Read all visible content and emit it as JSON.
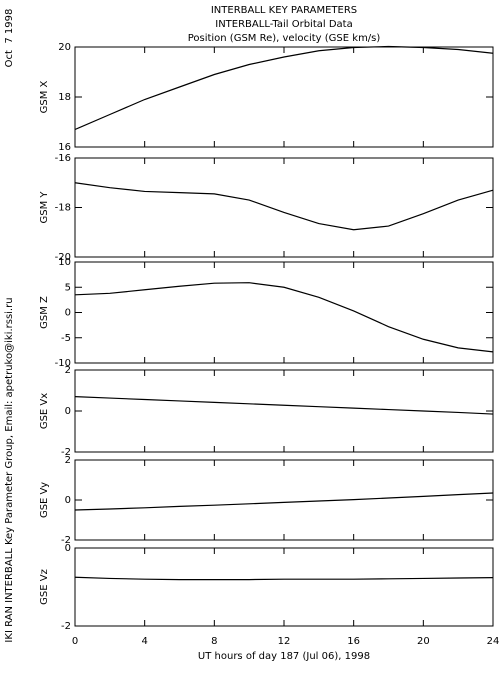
{
  "title": [
    "INTERBALL KEY PARAMETERS",
    "INTERBALL-Tail Orbital Data",
    "Position (GSM Re), velocity (GSE km/s)"
  ],
  "date": "Oct  7 1998",
  "credit": "IKI RAN INTERBALL Key Parameter Group, Email: apetruko@iki.rssi.ru",
  "chart_data": [
    {
      "type": "line",
      "ylabel": "GSM X",
      "color": "#000000",
      "xlim": [
        0,
        24
      ],
      "x": [
        0,
        2,
        4,
        6,
        8,
        10,
        12,
        14,
        16,
        18,
        20,
        22,
        24
      ],
      "values": [
        16.7,
        17.3,
        17.9,
        18.4,
        18.9,
        19.3,
        19.6,
        19.85,
        19.98,
        20.02,
        19.98,
        19.9,
        19.75
      ],
      "ylim": [
        16,
        20
      ],
      "yticks": [
        16,
        18,
        20
      ]
    },
    {
      "type": "line",
      "ylabel": "GSM Y",
      "color": "#000000",
      "xlim": [
        0,
        24
      ],
      "x": [
        0,
        2,
        4,
        6,
        8,
        10,
        12,
        14,
        16,
        18,
        20,
        22,
        24
      ],
      "values": [
        -17.0,
        -17.2,
        -17.35,
        -17.4,
        -17.45,
        -17.7,
        -18.2,
        -18.65,
        -18.9,
        -18.75,
        -18.25,
        -17.7,
        -17.3
      ],
      "ylim": [
        -20,
        -16
      ],
      "yticks": [
        -20,
        -18,
        -16
      ]
    },
    {
      "type": "line",
      "ylabel": "GSM Z",
      "color": "#000000",
      "xlim": [
        0,
        24
      ],
      "x": [
        0,
        2,
        4,
        6,
        8,
        10,
        12,
        14,
        16,
        18,
        20,
        22,
        24
      ],
      "values": [
        3.5,
        3.8,
        4.5,
        5.2,
        5.8,
        5.9,
        5.0,
        3.0,
        0.3,
        -2.8,
        -5.3,
        -7.0,
        -7.8
      ],
      "ylim": [
        -10,
        10
      ],
      "yticks": [
        -10,
        -5,
        0,
        5,
        10
      ]
    },
    {
      "type": "line",
      "ylabel": "GSE Vx",
      "color": "#000000",
      "xlim": [
        0,
        24
      ],
      "x": [
        0,
        2,
        4,
        6,
        8,
        10,
        12,
        14,
        16,
        18,
        20,
        22,
        24
      ],
      "values": [
        0.7,
        0.63,
        0.56,
        0.49,
        0.42,
        0.35,
        0.28,
        0.21,
        0.14,
        0.07,
        0.0,
        -0.07,
        -0.15
      ],
      "ylim": [
        -2,
        2
      ],
      "yticks": [
        -2,
        0,
        2
      ]
    },
    {
      "type": "line",
      "ylabel": "GSE Vy",
      "color": "#000000",
      "xlim": [
        0,
        24
      ],
      "x": [
        0,
        2,
        4,
        6,
        8,
        10,
        12,
        14,
        16,
        18,
        20,
        22,
        24
      ],
      "values": [
        -0.5,
        -0.45,
        -0.39,
        -0.32,
        -0.26,
        -0.19,
        -0.12,
        -0.05,
        0.02,
        0.1,
        0.18,
        0.27,
        0.35
      ],
      "ylim": [
        -2,
        2
      ],
      "yticks": [
        -2,
        0,
        2
      ]
    },
    {
      "type": "line",
      "ylabel": "GSE Vz",
      "color": "#000000",
      "xlim": [
        0,
        24
      ],
      "x": [
        0,
        2,
        4,
        6,
        8,
        10,
        12,
        14,
        16,
        18,
        20,
        22,
        24
      ],
      "values": [
        -0.75,
        -0.78,
        -0.8,
        -0.81,
        -0.81,
        -0.81,
        -0.8,
        -0.8,
        -0.8,
        -0.79,
        -0.78,
        -0.77,
        -0.76
      ],
      "ylim": [
        -2,
        0
      ],
      "yticks": [
        -2,
        0
      ],
      "xticks": [
        0,
        4,
        8,
        12,
        16,
        20,
        24
      ],
      "xlabel": "UT hours of day 187 (Jul 06), 1998"
    }
  ]
}
